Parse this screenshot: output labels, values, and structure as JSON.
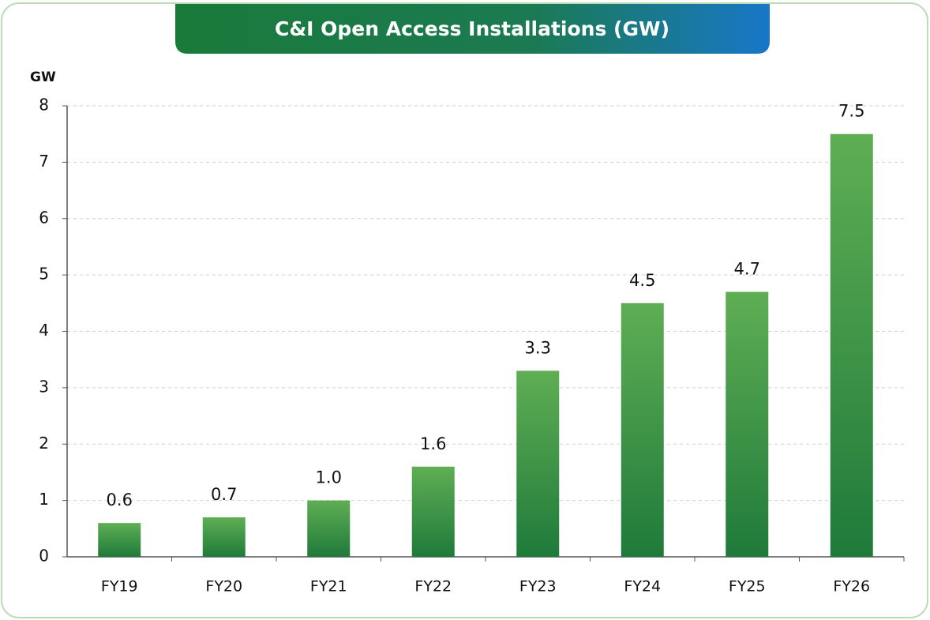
{
  "chart_data": {
    "type": "bar",
    "title": "C&I Open Access Installations (GW)",
    "ylabel": "GW",
    "categories": [
      "FY19",
      "FY20",
      "FY21",
      "FY22",
      "FY23",
      "FY24",
      "FY25",
      "FY26"
    ],
    "values": [
      0.6,
      0.7,
      1.0,
      1.6,
      3.3,
      4.5,
      4.7,
      7.5
    ],
    "value_labels": [
      "0.6",
      "0.7",
      "1.0",
      "1.6",
      "3.3",
      "4.5",
      "4.7",
      "7.5"
    ],
    "color": "#3f9444",
    "ylim": [
      0,
      8
    ],
    "yticks": [
      0,
      1,
      2,
      3,
      4,
      5,
      6,
      7,
      8
    ],
    "grid": true
  }
}
